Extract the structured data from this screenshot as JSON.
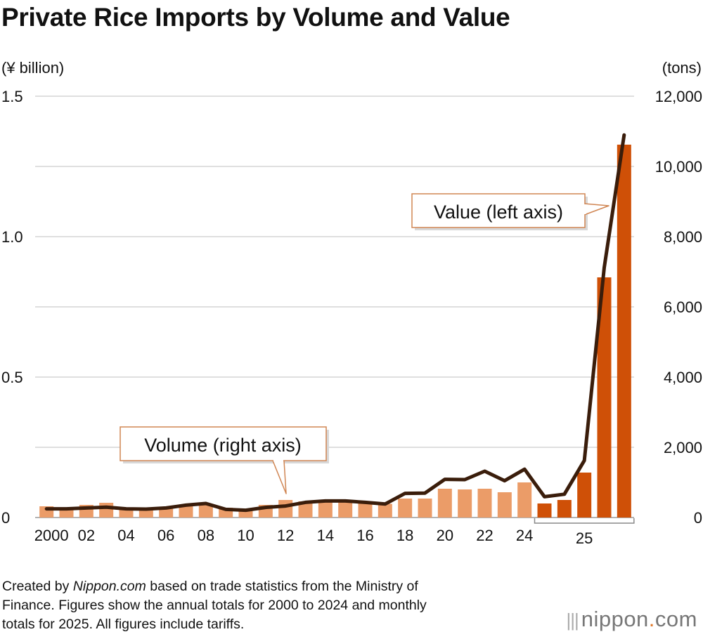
{
  "title": "Private Rice Imports by Volume and Value",
  "footnote": {
    "line1_author": "Nippon.com",
    "line1_prefix": "Created by ",
    "line1_suffix": " based on trade statistics from the Ministry of",
    "line2": "Finance. Figures show the annual totals for 2000 to 2024 and monthly",
    "line3": "totals for 2025. All figures include tariffs."
  },
  "logo": {
    "name": "nippon",
    "dot": ".",
    "tld": "com",
    "mark": "|||"
  },
  "colors": {
    "annual_bar": "#eb9c68",
    "monthly_bar": "#cf5007",
    "value_line": "#3a1d0b",
    "grid": "#cccccc",
    "callout_border": "#d08552"
  },
  "chart_data": {
    "type": "bar+line",
    "title": "Private Rice Imports by Volume and Value",
    "left_axis": {
      "label": "(¥ billion)",
      "ylim": [
        0,
        1.5
      ],
      "ticks": [
        "0",
        "0.5",
        "1.0",
        "1.5"
      ]
    },
    "right_axis": {
      "label": "(tons)",
      "ylim": [
        0,
        12000
      ],
      "ticks": [
        "0",
        "2,000",
        "4,000",
        "6,000",
        "8,000",
        "10,000",
        "12,000"
      ]
    },
    "x_tick_labels": [
      "2000",
      "02",
      "04",
      "06",
      "08",
      "10",
      "12",
      "14",
      "16",
      "18",
      "20",
      "22",
      "24",
      "25"
    ],
    "grid": true,
    "categories": [
      "2000",
      "2001",
      "2002",
      "2003",
      "2004",
      "2005",
      "2006",
      "2007",
      "2008",
      "2009",
      "2010",
      "2011",
      "2012",
      "2013",
      "2014",
      "2015",
      "2016",
      "2017",
      "2018",
      "2019",
      "2020",
      "2021",
      "2022",
      "2023",
      "2024",
      "2025-01",
      "2025-02",
      "2025-03",
      "2025-04",
      "2025-05"
    ],
    "series": [
      {
        "name": "Volume (right axis)",
        "type": "bar",
        "axis": "right",
        "values": [
          320,
          260,
          360,
          420,
          260,
          240,
          260,
          350,
          380,
          280,
          240,
          360,
          500,
          460,
          500,
          460,
          420,
          390,
          540,
          540,
          820,
          800,
          820,
          720,
          1000,
          400,
          500,
          1280,
          6840,
          10620
        ]
      },
      {
        "name": "Value (left axis)",
        "type": "line",
        "axis": "left",
        "values": [
          0.031,
          0.031,
          0.034,
          0.037,
          0.031,
          0.03,
          0.034,
          0.044,
          0.05,
          0.029,
          0.026,
          0.036,
          0.041,
          0.054,
          0.059,
          0.059,
          0.054,
          0.048,
          0.086,
          0.087,
          0.136,
          0.135,
          0.165,
          0.131,
          0.172,
          0.074,
          0.083,
          0.203,
          0.89,
          1.362
        ]
      }
    ],
    "annotations": [
      "Value (left axis)",
      "Volume (right axis)"
    ]
  }
}
